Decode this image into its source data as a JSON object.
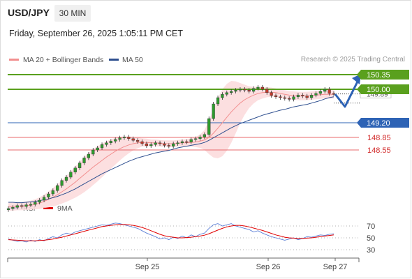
{
  "header": {
    "symbol": "USD/JPY",
    "timeframe": "30 MIN",
    "datetime": "Friday, September 26, 2025 1:05:11 PM CET"
  },
  "legend": {
    "ma20": "MA 20 + Bollinger Bands",
    "ma50": "MA 50",
    "copyright": "Research © 2025 Trading Central",
    "rsi": "RSI",
    "ma9": "9MA"
  },
  "colors": {
    "green": "#5aa01e",
    "blue": "#2e63b5",
    "red": "#e8696b",
    "band": "#fcd9da",
    "candle_up": "#2e9a2e",
    "candle_down": "#c0392b",
    "rsi": "#5b7fd6",
    "rsi_ma": "#e00000"
  },
  "chart_data": {
    "type": "candlestick",
    "x_ticks": [
      "Sep 25",
      "Sep 26",
      "Sep 27"
    ],
    "levels": [
      {
        "label": "150.35",
        "value": 150.35,
        "kind": "resistance",
        "color": "#5aa01e"
      },
      {
        "label": "150.00",
        "value": 150.0,
        "kind": "resistance",
        "color": "#5aa01e"
      },
      {
        "label": "149.20",
        "value": 149.2,
        "kind": "pivot",
        "color": "#2e63b5"
      },
      {
        "label": "148.85",
        "value": 148.85,
        "kind": "support",
        "color": "#e8696b"
      },
      {
        "label": "148.55",
        "value": 148.55,
        "kind": "support",
        "color": "#e8696b"
      }
    ],
    "last_price_label": "149.89",
    "price_range": [
      147.1,
      150.7
    ],
    "price_series": [
      147.15,
      147.18,
      147.22,
      147.2,
      147.24,
      147.25,
      147.3,
      147.35,
      147.42,
      147.5,
      147.58,
      147.7,
      147.82,
      147.9,
      148.02,
      148.12,
      148.24,
      148.36,
      148.45,
      148.55,
      148.6,
      148.68,
      148.72,
      148.76,
      148.8,
      148.84,
      148.86,
      148.82,
      148.78,
      148.75,
      148.7,
      148.65,
      148.68,
      148.72,
      148.7,
      148.66,
      148.64,
      148.7,
      148.72,
      148.75,
      148.74,
      148.8,
      148.82,
      148.86,
      148.92,
      149.3,
      149.65,
      149.8,
      149.88,
      149.92,
      149.95,
      149.98,
      150.0,
      149.98,
      149.95,
      150.02,
      150.05,
      150.0,
      149.92,
      149.85,
      149.82,
      149.8,
      149.78,
      149.76,
      149.82,
      149.86,
      149.84,
      149.8,
      149.86,
      149.9,
      149.95,
      150.0,
      149.9,
      149.89
    ],
    "ma50_series": [
      147.3,
      147.3,
      147.29,
      147.29,
      147.3,
      147.31,
      147.32,
      147.34,
      147.36,
      147.38,
      147.41,
      147.44,
      147.48,
      147.52,
      147.57,
      147.62,
      147.68,
      147.74,
      147.8,
      147.86,
      147.92,
      147.98,
      148.03,
      148.08,
      148.13,
      148.18,
      148.23,
      148.28,
      148.32,
      148.36,
      148.39,
      148.42,
      148.45,
      148.48,
      148.5,
      148.52,
      148.54,
      148.57,
      148.6,
      148.62,
      148.64,
      148.66,
      148.68,
      148.7,
      148.73,
      148.78,
      148.84,
      148.9,
      148.96,
      149.02,
      149.08,
      149.13,
      149.18,
      149.22,
      149.26,
      149.3,
      149.34,
      149.38,
      149.41,
      149.44,
      149.47,
      149.5,
      149.52,
      149.55,
      149.58,
      149.6,
      149.62,
      149.64,
      149.67,
      149.7,
      149.73,
      149.77,
      149.8,
      149.82
    ],
    "ma20_series": [
      147.2,
      147.2,
      147.21,
      147.21,
      147.22,
      147.23,
      147.25,
      147.28,
      147.32,
      147.37,
      147.42,
      147.48,
      147.55,
      147.62,
      147.7,
      147.78,
      147.87,
      147.96,
      148.05,
      148.14,
      148.22,
      148.3,
      148.38,
      148.45,
      148.52,
      148.58,
      148.63,
      148.67,
      148.7,
      148.72,
      148.73,
      148.73,
      148.72,
      148.72,
      148.71,
      148.7,
      148.7,
      148.7,
      148.71,
      148.72,
      148.72,
      148.73,
      148.74,
      148.76,
      148.79,
      148.85,
      148.95,
      149.07,
      149.2,
      149.33,
      149.46,
      149.57,
      149.67,
      149.75,
      149.81,
      149.86,
      149.9,
      149.92,
      149.93,
      149.93,
      149.92,
      149.9,
      149.88,
      149.86,
      149.85,
      149.84,
      149.84,
      149.84,
      149.85,
      149.86,
      149.87,
      149.88,
      149.88,
      149.88
    ],
    "band_width_series": [
      0.1,
      0.1,
      0.1,
      0.1,
      0.1,
      0.11,
      0.12,
      0.14,
      0.16,
      0.19,
      0.22,
      0.25,
      0.28,
      0.31,
      0.34,
      0.37,
      0.4,
      0.42,
      0.43,
      0.43,
      0.42,
      0.4,
      0.38,
      0.35,
      0.32,
      0.28,
      0.24,
      0.2,
      0.16,
      0.13,
      0.1,
      0.09,
      0.08,
      0.08,
      0.08,
      0.08,
      0.08,
      0.08,
      0.08,
      0.08,
      0.09,
      0.1,
      0.12,
      0.16,
      0.24,
      0.4,
      0.58,
      0.72,
      0.8,
      0.8,
      0.74,
      0.62,
      0.48,
      0.36,
      0.26,
      0.2,
      0.16,
      0.14,
      0.12,
      0.11,
      0.1,
      0.1,
      0.1,
      0.1,
      0.1,
      0.1,
      0.1,
      0.1,
      0.1,
      0.1,
      0.1,
      0.1,
      0.1,
      0.1
    ],
    "rsi": {
      "ticks": [
        70,
        50,
        30
      ],
      "range": [
        20,
        80
      ],
      "rsi_series": [
        48,
        46,
        44,
        45,
        43,
        46,
        44,
        47,
        45,
        49,
        52,
        50,
        55,
        58,
        56,
        60,
        62,
        64,
        66,
        68,
        70,
        72,
        71,
        73,
        75,
        74,
        72,
        70,
        68,
        66,
        62,
        58,
        55,
        52,
        48,
        50,
        47,
        51,
        49,
        53,
        50,
        55,
        52,
        56,
        58,
        66,
        72,
        74,
        70,
        72,
        74,
        70,
        68,
        66,
        64,
        60,
        62,
        58,
        55,
        52,
        50,
        48,
        46,
        48,
        50,
        47,
        49,
        52,
        51,
        53,
        55,
        54,
        56,
        57
      ],
      "ma_series": [
        47,
        46.5,
        46,
        45.5,
        45,
        45,
        45,
        45.5,
        46,
        47,
        48,
        49.5,
        51,
        53,
        55,
        57,
        59,
        61,
        63,
        65,
        67,
        69,
        70,
        71,
        72,
        72.5,
        72.5,
        72,
        71,
        69.5,
        67.5,
        65,
        62,
        59,
        56,
        53.5,
        52,
        51,
        50,
        50,
        50.5,
        51,
        52,
        53,
        54.5,
        57,
        60,
        63,
        66,
        68.5,
        70,
        71,
        71,
        70,
        68.5,
        66.5,
        64.5,
        62.5,
        60,
        57.5,
        55,
        53,
        51,
        50,
        49.5,
        49,
        49,
        49.5,
        50,
        51,
        52,
        53,
        54,
        55
      ]
    }
  }
}
